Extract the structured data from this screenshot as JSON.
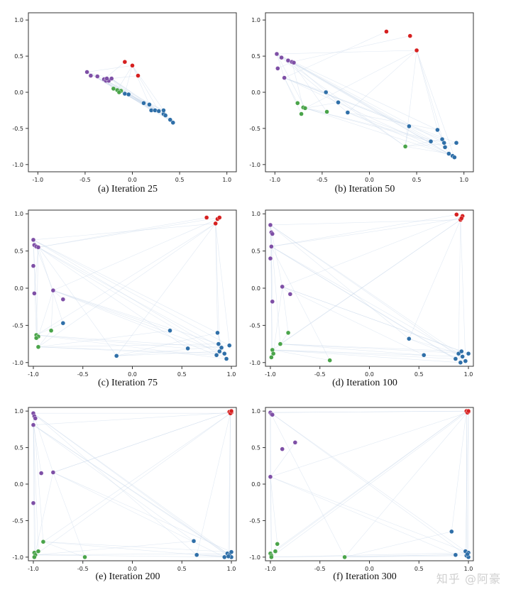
{
  "colors": {
    "purple": "#7e4fa6",
    "red": "#d62020",
    "green": "#4aa44a",
    "blue": "#2f6fa8",
    "edge": "#c9d8ea"
  },
  "watermark": "知乎 @阿豪",
  "chart_data": [
    {
      "type": "scatter",
      "caption": "(a) Iteration 25",
      "xlim": [
        -1.1,
        1.1
      ],
      "ylim": [
        -1.1,
        1.1
      ],
      "xticks": [
        "-1.0",
        "-0.5",
        "0.0",
        "0.5",
        "1.0"
      ],
      "yticks": [
        "1.0",
        "0.5",
        "0.0",
        "-0.5",
        "-1.0"
      ],
      "grid": false,
      "series": [
        {
          "color": "purple",
          "points": [
            [
              -0.48,
              0.28
            ],
            [
              -0.44,
              0.23
            ],
            [
              -0.37,
              0.22
            ],
            [
              -0.3,
              0.18
            ],
            [
              -0.28,
              0.16
            ],
            [
              -0.25,
              0.16
            ],
            [
              -0.22,
              0.19
            ],
            [
              -0.27,
              0.19
            ]
          ]
        },
        {
          "color": "red",
          "points": [
            [
              -0.08,
              0.42
            ],
            [
              0.0,
              0.37
            ],
            [
              0.06,
              0.23
            ]
          ]
        },
        {
          "color": "green",
          "points": [
            [
              -0.2,
              0.05
            ],
            [
              -0.16,
              0.03
            ],
            [
              -0.12,
              0.02
            ],
            [
              -0.14,
              0.0
            ]
          ]
        },
        {
          "color": "blue",
          "points": [
            [
              -0.08,
              -0.02
            ],
            [
              -0.04,
              -0.03
            ],
            [
              0.12,
              -0.15
            ],
            [
              0.18,
              -0.17
            ],
            [
              0.2,
              -0.25
            ],
            [
              0.24,
              -0.25
            ],
            [
              0.28,
              -0.26
            ],
            [
              0.33,
              -0.3
            ],
            [
              0.35,
              -0.32
            ],
            [
              0.4,
              -0.38
            ],
            [
              0.43,
              -0.42
            ],
            [
              0.33,
              -0.25
            ]
          ]
        }
      ]
    },
    {
      "type": "scatter",
      "caption": "(b) Iteration 50",
      "xlim": [
        -1.1,
        1.1
      ],
      "ylim": [
        -1.1,
        1.1
      ],
      "xticks": [
        "-1.0",
        "-0.5",
        "0.0",
        "0.5",
        "1.0"
      ],
      "yticks": [
        "1.0",
        "0.5",
        "0.0",
        "-0.5",
        "-1.0"
      ],
      "grid": false,
      "series": [
        {
          "color": "purple",
          "points": [
            [
              -0.98,
              0.53
            ],
            [
              -0.93,
              0.48
            ],
            [
              -0.86,
              0.44
            ],
            [
              -0.82,
              0.42
            ],
            [
              -0.8,
              0.41
            ],
            [
              -0.97,
              0.33
            ],
            [
              -0.9,
              0.2
            ]
          ]
        },
        {
          "color": "red",
          "points": [
            [
              0.18,
              0.84
            ],
            [
              0.43,
              0.78
            ],
            [
              0.5,
              0.58
            ]
          ]
        },
        {
          "color": "green",
          "points": [
            [
              -0.76,
              -0.15
            ],
            [
              -0.7,
              -0.21
            ],
            [
              -0.68,
              -0.22
            ],
            [
              -0.72,
              -0.3
            ],
            [
              -0.45,
              -0.27
            ],
            [
              0.38,
              -0.75
            ]
          ]
        },
        {
          "color": "blue",
          "points": [
            [
              -0.46,
              0.0
            ],
            [
              -0.33,
              -0.14
            ],
            [
              -0.23,
              -0.28
            ],
            [
              0.42,
              -0.47
            ],
            [
              0.65,
              -0.68
            ],
            [
              0.72,
              -0.52
            ],
            [
              0.77,
              -0.65
            ],
            [
              0.79,
              -0.7
            ],
            [
              0.8,
              -0.76
            ],
            [
              0.84,
              -0.85
            ],
            [
              0.88,
              -0.88
            ],
            [
              0.9,
              -0.9
            ],
            [
              0.92,
              -0.7
            ]
          ]
        }
      ]
    },
    {
      "type": "scatter",
      "caption": "(c) Iteration 75",
      "xlim": [
        -1.05,
        1.05
      ],
      "ylim": [
        -1.05,
        1.05
      ],
      "xticks": [
        "-1.0",
        "-0.5",
        "0.0",
        "0.5",
        "1.0"
      ],
      "yticks": [
        "1.0",
        "0.5",
        "0.0",
        "-0.5",
        "-1.0"
      ],
      "grid": false,
      "series": [
        {
          "color": "purple",
          "points": [
            [
              -1.0,
              0.65
            ],
            [
              -0.99,
              0.58
            ],
            [
              -0.97,
              0.56
            ],
            [
              -0.95,
              0.55
            ],
            [
              -1.0,
              0.3
            ],
            [
              -0.99,
              -0.07
            ],
            [
              -0.8,
              -0.03
            ],
            [
              -0.7,
              -0.15
            ]
          ]
        },
        {
          "color": "red",
          "points": [
            [
              0.75,
              0.95
            ],
            [
              0.84,
              0.87
            ],
            [
              0.86,
              0.93
            ],
            [
              0.88,
              0.95
            ]
          ]
        },
        {
          "color": "green",
          "points": [
            [
              -0.97,
              -0.63
            ],
            [
              -0.95,
              -0.65
            ],
            [
              -0.97,
              -0.67
            ],
            [
              -0.95,
              -0.79
            ],
            [
              -0.82,
              -0.57
            ]
          ]
        },
        {
          "color": "blue",
          "points": [
            [
              -0.7,
              -0.47
            ],
            [
              -0.16,
              -0.91
            ],
            [
              0.38,
              -0.57
            ],
            [
              0.56,
              -0.81
            ],
            [
              0.86,
              -0.6
            ],
            [
              0.87,
              -0.75
            ],
            [
              0.9,
              -0.8
            ],
            [
              0.88,
              -0.85
            ],
            [
              0.93,
              -0.88
            ],
            [
              0.95,
              -0.95
            ],
            [
              0.98,
              -0.77
            ],
            [
              0.85,
              -0.9
            ]
          ]
        }
      ]
    },
    {
      "type": "scatter",
      "caption": "(d) Iteration 100",
      "xlim": [
        -1.05,
        1.05
      ],
      "ylim": [
        -1.05,
        1.05
      ],
      "xticks": [
        "-1.0",
        "-0.5",
        "0.0",
        "0.5",
        "1.0"
      ],
      "yticks": [
        "1.0",
        "0.5",
        "0.0",
        "-0.5",
        "-1.0"
      ],
      "grid": false,
      "series": [
        {
          "color": "purple",
          "points": [
            [
              -1.0,
              0.85
            ],
            [
              -0.99,
              0.75
            ],
            [
              -0.98,
              0.73
            ],
            [
              -0.99,
              0.56
            ],
            [
              -1.0,
              0.4
            ],
            [
              -0.98,
              -0.18
            ],
            [
              -0.88,
              0.02
            ],
            [
              -0.8,
              -0.08
            ]
          ]
        },
        {
          "color": "red",
          "points": [
            [
              0.88,
              0.99
            ],
            [
              0.92,
              0.92
            ],
            [
              0.94,
              0.97
            ],
            [
              0.93,
              0.94
            ]
          ]
        },
        {
          "color": "green",
          "points": [
            [
              -0.98,
              -0.83
            ],
            [
              -0.97,
              -0.88
            ],
            [
              -0.99,
              -0.93
            ],
            [
              -0.9,
              -0.75
            ],
            [
              -0.82,
              -0.6
            ],
            [
              -0.4,
              -0.97
            ]
          ]
        },
        {
          "color": "blue",
          "points": [
            [
              0.4,
              -0.68
            ],
            [
              0.55,
              -0.9
            ],
            [
              0.87,
              -0.95
            ],
            [
              0.9,
              -0.88
            ],
            [
              0.93,
              -0.85
            ],
            [
              0.94,
              -0.92
            ],
            [
              0.97,
              -0.98
            ],
            [
              1.0,
              -0.88
            ],
            [
              0.92,
              -1.0
            ]
          ]
        }
      ]
    },
    {
      "type": "scatter",
      "caption": "(e) Iteration 200",
      "xlim": [
        -1.05,
        1.05
      ],
      "ylim": [
        -1.05,
        1.05
      ],
      "xticks": [
        "-1.0",
        "-0.5",
        "0.0",
        "0.5",
        "1.0"
      ],
      "yticks": [
        "1.0",
        "0.5",
        "0.0",
        "-0.5",
        "-1.0"
      ],
      "grid": false,
      "series": [
        {
          "color": "purple",
          "points": [
            [
              -1.0,
              0.97
            ],
            [
              -0.99,
              0.93
            ],
            [
              -0.98,
              0.9
            ],
            [
              -1.0,
              0.81
            ],
            [
              -1.0,
              -0.26
            ],
            [
              -0.92,
              0.15
            ],
            [
              -0.8,
              0.16
            ]
          ]
        },
        {
          "color": "red",
          "points": [
            [
              0.98,
              0.99
            ],
            [
              1.0,
              0.98
            ],
            [
              0.99,
              0.97
            ],
            [
              1.0,
              1.0
            ]
          ]
        },
        {
          "color": "green",
          "points": [
            [
              -0.99,
              -0.94
            ],
            [
              -0.98,
              -0.97
            ],
            [
              -0.99,
              -1.0
            ],
            [
              -0.95,
              -0.92
            ],
            [
              -0.9,
              -0.79
            ],
            [
              -0.48,
              -1.0
            ]
          ]
        },
        {
          "color": "blue",
          "points": [
            [
              0.62,
              -0.78
            ],
            [
              0.65,
              -0.97
            ],
            [
              0.93,
              -1.0
            ],
            [
              0.96,
              -0.95
            ],
            [
              0.98,
              -0.97
            ],
            [
              1.0,
              -0.93
            ],
            [
              1.0,
              -1.0
            ],
            [
              0.97,
              -0.99
            ]
          ]
        }
      ]
    },
    {
      "type": "scatter",
      "caption": "(f) Iteration 300",
      "xlim": [
        -1.05,
        1.05
      ],
      "ylim": [
        -1.05,
        1.05
      ],
      "xticks": [
        "-1.0",
        "-0.5",
        "0.0",
        "0.5",
        "1.0"
      ],
      "yticks": [
        "1.0",
        "0.5",
        "0.0",
        "-0.5",
        "-1.0"
      ],
      "grid": false,
      "series": [
        {
          "color": "purple",
          "points": [
            [
              -1.0,
              0.98
            ],
            [
              -0.99,
              0.96
            ],
            [
              -0.98,
              0.95
            ],
            [
              -1.0,
              0.1
            ],
            [
              -0.88,
              0.48
            ],
            [
              -0.75,
              0.57
            ]
          ]
        },
        {
          "color": "red",
          "points": [
            [
              0.98,
              1.0
            ],
            [
              1.0,
              0.99
            ],
            [
              0.99,
              0.98
            ],
            [
              1.0,
              1.0
            ]
          ]
        },
        {
          "color": "green",
          "points": [
            [
              -1.0,
              -0.95
            ],
            [
              -0.99,
              -0.98
            ],
            [
              -0.99,
              -1.0
            ],
            [
              -0.95,
              -0.92
            ],
            [
              -0.93,
              -0.82
            ],
            [
              -0.25,
              -1.0
            ]
          ]
        },
        {
          "color": "blue",
          "points": [
            [
              0.83,
              -0.65
            ],
            [
              0.87,
              -0.97
            ],
            [
              0.97,
              -0.92
            ],
            [
              0.98,
              -0.98
            ],
            [
              1.0,
              -0.94
            ],
            [
              1.0,
              -1.0
            ],
            [
              0.99,
              -0.96
            ]
          ]
        }
      ]
    }
  ]
}
